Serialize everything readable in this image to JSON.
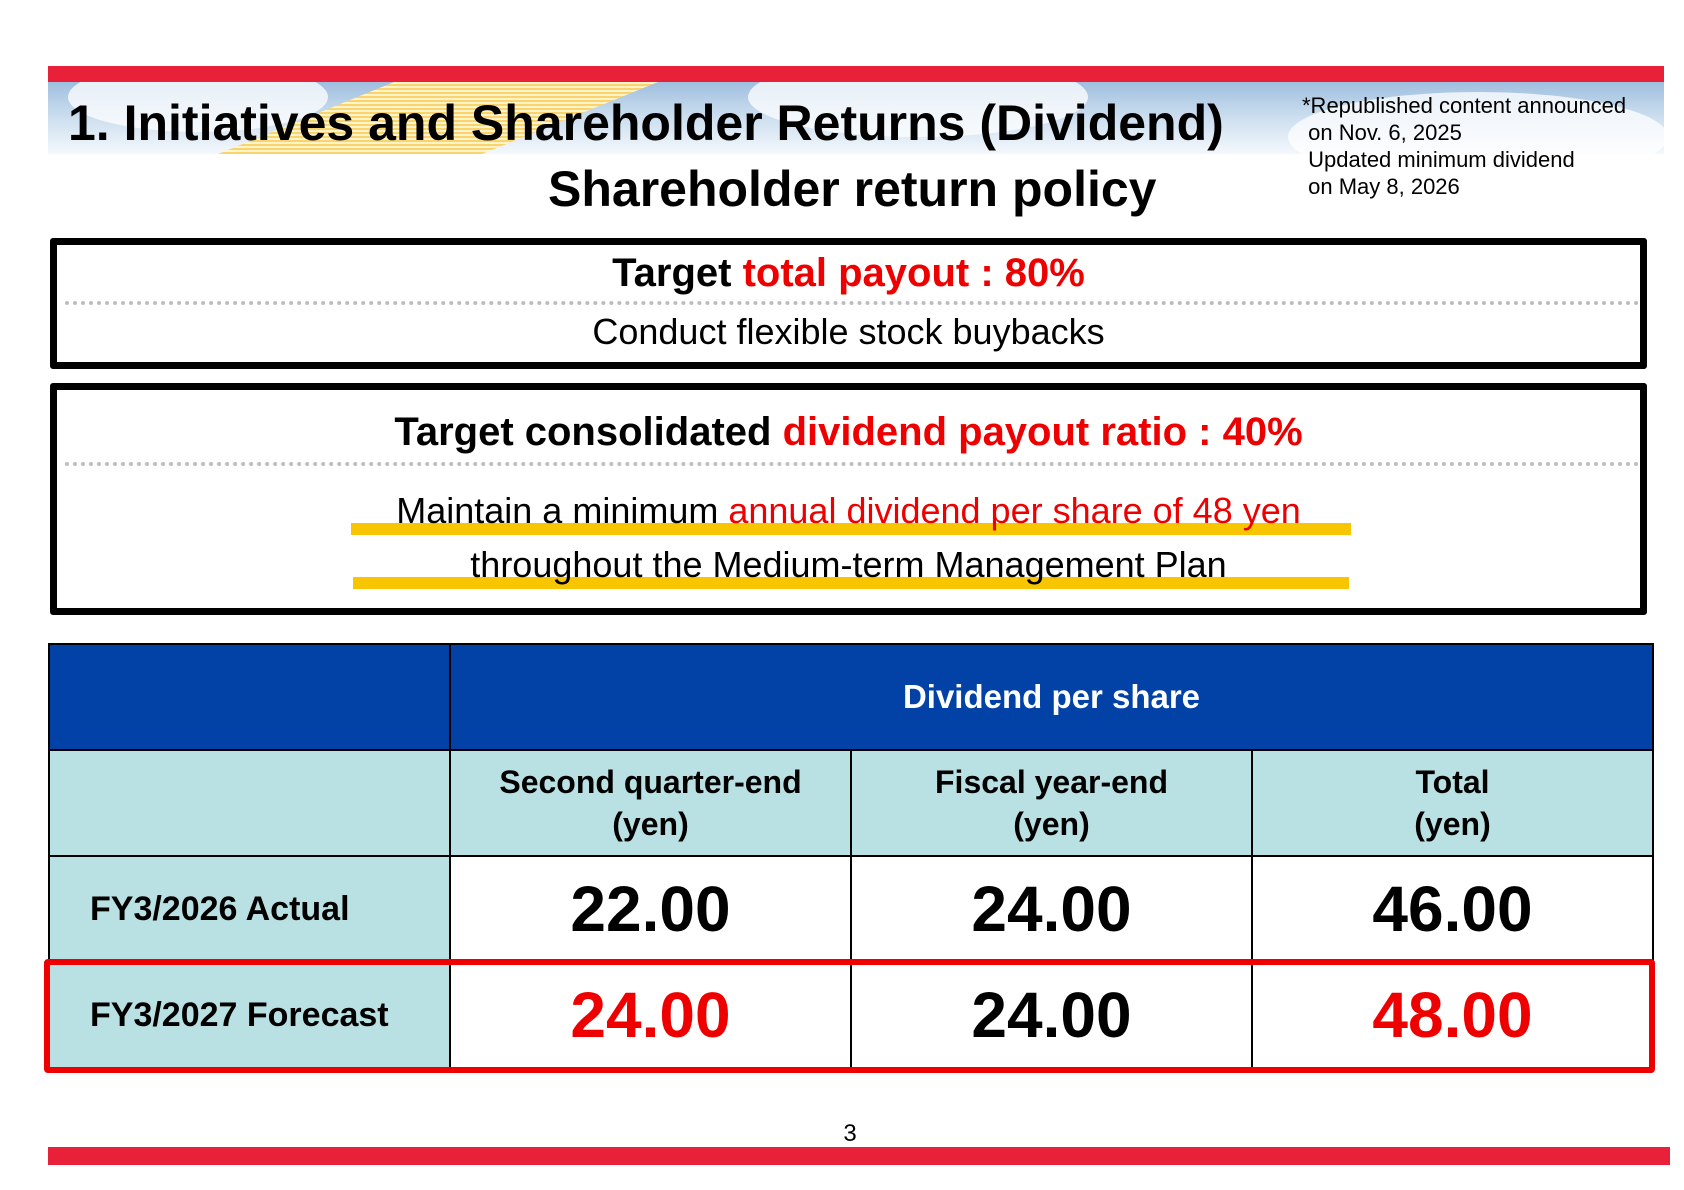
{
  "header": {
    "title": "1. Initiatives and Shareholder Returns (Dividend)",
    "subtitle": "Shareholder return policy",
    "note_lines": [
      "*Republished content announced",
      " on Nov. 6, 2025",
      " Updated minimum dividend",
      " on May 8, 2026"
    ]
  },
  "policy_box_1": {
    "heading_prefix": "Target ",
    "heading_highlight": "total payout : 80%",
    "body": "Conduct flexible stock buybacks"
  },
  "policy_box_2": {
    "heading_prefix": "Target consolidated ",
    "heading_highlight": "dividend payout ratio : 40%",
    "body_line1_prefix": "Maintain a minimum ",
    "body_line1_highlight": "annual dividend per share of 48 yen",
    "body_line2": "throughout the Medium-term Management Plan"
  },
  "dividend_table": {
    "group_header": "Dividend per share",
    "columns": [
      {
        "line1": "Second quarter-end",
        "line2": "(yen)"
      },
      {
        "line1": "Fiscal year-end",
        "line2": "(yen)"
      },
      {
        "line1": "Total",
        "line2": "(yen)"
      }
    ],
    "rows": [
      {
        "label": "FY3/2026 Actual",
        "values": [
          "22.00",
          "24.00",
          "46.00"
        ],
        "highlighted": [
          false,
          false,
          false
        ]
      },
      {
        "label": "FY3/2027 Forecast",
        "values": [
          "24.00",
          "24.00",
          "48.00"
        ],
        "highlighted": [
          true,
          false,
          true
        ]
      }
    ]
  },
  "footer": {
    "page_number": "3"
  },
  "colors": {
    "accent_red": "#ee0000",
    "brand_bar_red": "#e8203a",
    "header_blue": "#0241a6",
    "header_teal": "#b9e0e3",
    "underline_yellow": "#f8c600"
  }
}
